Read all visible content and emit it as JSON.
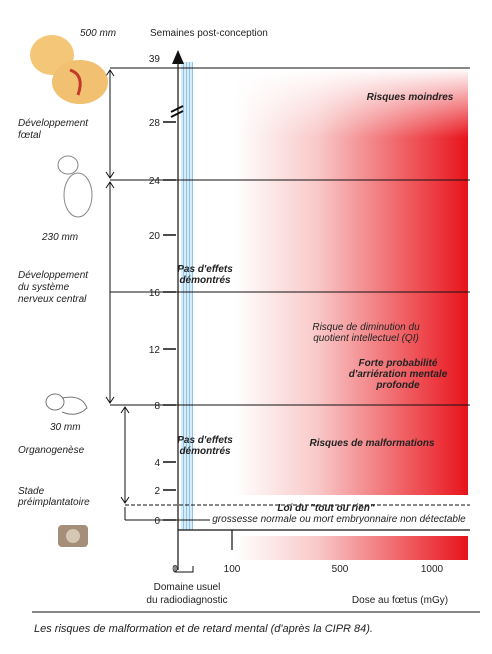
{
  "header": {
    "fetus_size_top": "500 mm",
    "axis_title": "Semaines post-conception"
  },
  "vertical_axis": {
    "ticks": [
      "39",
      "28",
      "24",
      "20",
      "16",
      "12",
      "8",
      "4",
      "2",
      "0"
    ]
  },
  "horizontal_axis": {
    "ticks": [
      "0",
      "100",
      "500",
      "1000"
    ],
    "title": "Dose au fœtus (mGy)",
    "domain_label": [
      "Domaine usuel",
      "du radiodiagnostic"
    ]
  },
  "stages": [
    {
      "label": [
        "Développement",
        "fœtal"
      ]
    },
    {
      "size": "230 mm",
      "label": [
        "Développement",
        "du système",
        "nerveux central"
      ]
    },
    {
      "size": "30 mm",
      "label": [
        "Organogenèse"
      ]
    },
    {
      "label": [
        "Stade",
        "préimplantatoire"
      ]
    }
  ],
  "zones": {
    "risques_moindres": "Risques moindres",
    "pas_effets_1": [
      "Pas d'effets",
      "démontrés"
    ],
    "risque_qi": [
      "Risque de diminution du",
      "quotient intellectuel (QI)"
    ],
    "forte_proba": [
      "Forte probabilité",
      "d'arriération mentale",
      "profonde"
    ],
    "pas_effets_2": [
      "Pas d'effets",
      "démontrés"
    ],
    "malformations": "Risques de malformations",
    "tout_ou_rien": "Loi du \"tout ou rien\"",
    "grossesse": "grossesse normale ou mort embryonnaire non détectable"
  },
  "caption": "Les risques de malformation et de retard mental (d'après la CIPR 84)."
}
